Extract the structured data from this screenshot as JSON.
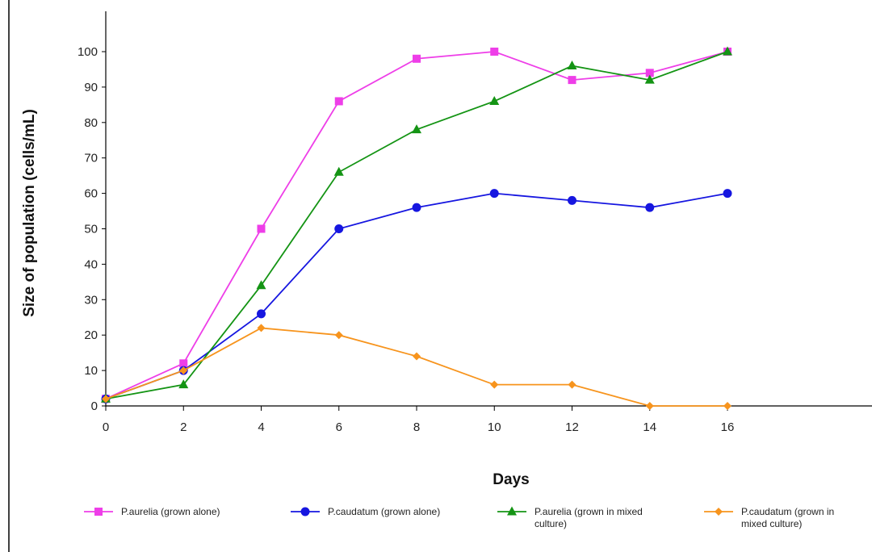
{
  "chart_data": {
    "type": "line",
    "title": "",
    "xlabel": "Days",
    "ylabel": "Size of population (cells/mL)",
    "x": [
      0,
      2,
      4,
      6,
      8,
      10,
      12,
      14,
      16
    ],
    "x_ticks": [
      0,
      2,
      4,
      6,
      8,
      10,
      12,
      14,
      16
    ],
    "y_ticks": [
      0,
      10,
      20,
      30,
      40,
      50,
      60,
      70,
      80,
      90,
      100
    ],
    "xlim": [
      0,
      16
    ],
    "ylim": [
      0,
      100
    ],
    "grid": false,
    "legend_position": "bottom",
    "series": [
      {
        "name": "P.aurelia (grown alone)",
        "legend_lines": [
          "P.aurelia (grown alone)"
        ],
        "color": "#ee3ee8",
        "marker": "square",
        "values": [
          2,
          12,
          50,
          86,
          98,
          100,
          92,
          94,
          100
        ]
      },
      {
        "name": "P.caudatum (grown alone)",
        "legend_lines": [
          "P.caudatum (grown alone)"
        ],
        "color": "#1616e0",
        "marker": "circle",
        "values": [
          2,
          10,
          26,
          50,
          56,
          60,
          58,
          56,
          60
        ]
      },
      {
        "name": "P.aurelia (grown in mixed culture)",
        "legend_lines": [
          "P.aurelia (grown in mixed",
          "culture)"
        ],
        "color": "#149414",
        "marker": "triangle",
        "values": [
          2,
          6,
          34,
          66,
          78,
          86,
          96,
          92,
          100
        ]
      },
      {
        "name": "P.caudatum (grown in mixed culture)",
        "legend_lines": [
          "P.caudatum (grown in",
          "mixed culture)"
        ],
        "color": "#f7941d",
        "marker": "diamond",
        "values": [
          2,
          10,
          22,
          20,
          14,
          6,
          6,
          0,
          0
        ]
      }
    ]
  }
}
